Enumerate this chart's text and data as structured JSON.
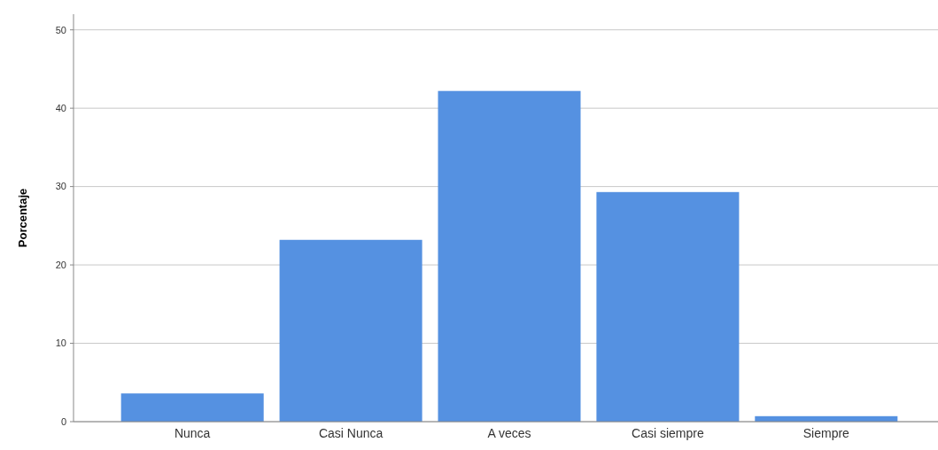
{
  "chart_data": {
    "type": "bar",
    "ylabel": "Porcentaje",
    "categories": [
      "Nunca",
      "Casi Nunca",
      "A veces",
      "Casi siempre",
      "Siempre"
    ],
    "values": [
      3.6,
      23.2,
      42.2,
      29.3,
      0.7
    ],
    "color": "#5591e1",
    "ylim": [
      0,
      52
    ],
    "yticks": [
      0,
      10,
      20,
      30,
      40,
      50
    ],
    "grid": "y"
  }
}
